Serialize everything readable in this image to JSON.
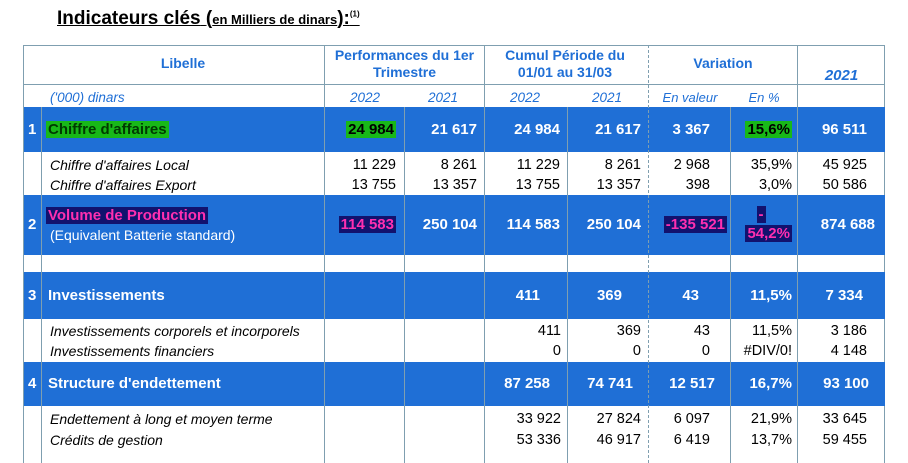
{
  "title": {
    "main": "Indicateurs clés",
    "open": "(",
    "unit": "en Milliers de dinars",
    "close": "):",
    "note": "(1)"
  },
  "header": {
    "libelle": "Libelle",
    "perf": "Performances du 1er Trimestre",
    "cumul": "Cumul Période du 01/01 au 31/03",
    "variation": "Variation",
    "year": "2021",
    "unit_label": "('000) dinars",
    "y2022a": "2022",
    "y2021a": "2021",
    "y2022b": "2022",
    "y2021b": "2021",
    "en_valeur": "En valeur",
    "en_pct": "En %"
  },
  "rows": {
    "r1": {
      "num": "1",
      "label": "Chiffre d'affaires",
      "c1": "24 984",
      "c2": "21 617",
      "c3": "24 984",
      "c4": "21 617",
      "c5": "3 367",
      "c6": "15,6%",
      "c7": "96 511"
    },
    "r1a": {
      "label": "Chiffre d'affaires Local",
      "c1": "11 229",
      "c2": "8 261",
      "c3": "11 229",
      "c4": "8 261",
      "c5": "2 968",
      "c6": "35,9%",
      "c7": "45 925"
    },
    "r1b": {
      "label": "Chiffre d'affaires Export",
      "c1": "13 755",
      "c2": "13 357",
      "c3": "13 755",
      "c4": "13 357",
      "c5": "398",
      "c6": "3,0%",
      "c7": "50 586"
    },
    "r2": {
      "num": "2",
      "label": "Volume de Production",
      "label2": "(Equivalent Batterie standard)",
      "c1": "114 583",
      "c2": "250 104",
      "c3": "114 583",
      "c4": "250 104",
      "c5": "-135 521",
      "c6a": "-",
      "c6b": "54,2%",
      "c7": "874 688"
    },
    "r3": {
      "num": "3",
      "label": "Investissements",
      "c3": "411",
      "c4": "369",
      "c5": "43",
      "c6": "11,5%",
      "c7": "7 334"
    },
    "r3a": {
      "label": "Investissements corporels et incorporels",
      "c3": "411",
      "c4": "369",
      "c5": "43",
      "c6": "11,5%",
      "c7": "3 186"
    },
    "r3b": {
      "label": "Investissements financiers",
      "c3": "0",
      "c4": "0",
      "c5": "0",
      "c6": "#DIV/0!",
      "c7": "4 148"
    },
    "r4": {
      "num": "4",
      "label": "Structure d'endettement",
      "c3": "87 258",
      "c4": "74 741",
      "c5": "12 517",
      "c6": "16,7%",
      "c7": "93 100"
    },
    "r4a": {
      "label": "Endettement à long et moyen terme",
      "c3": "33 922",
      "c4": "27 824",
      "c5": "6 097",
      "c6": "21,9%",
      "c7": "33 645"
    },
    "r4b": {
      "label": "Crédits de gestion",
      "c3": "53 336",
      "c4": "46 917",
      "c5": "6 419",
      "c6": "13,7%",
      "c7": "59 455"
    }
  },
  "colors": {
    "band": "#1f6fd6",
    "header_text": "#1f6fd6",
    "highlight_green": "#18b818",
    "highlight_navy": "#12126e",
    "highlight_magenta": "#ff2fb0"
  }
}
